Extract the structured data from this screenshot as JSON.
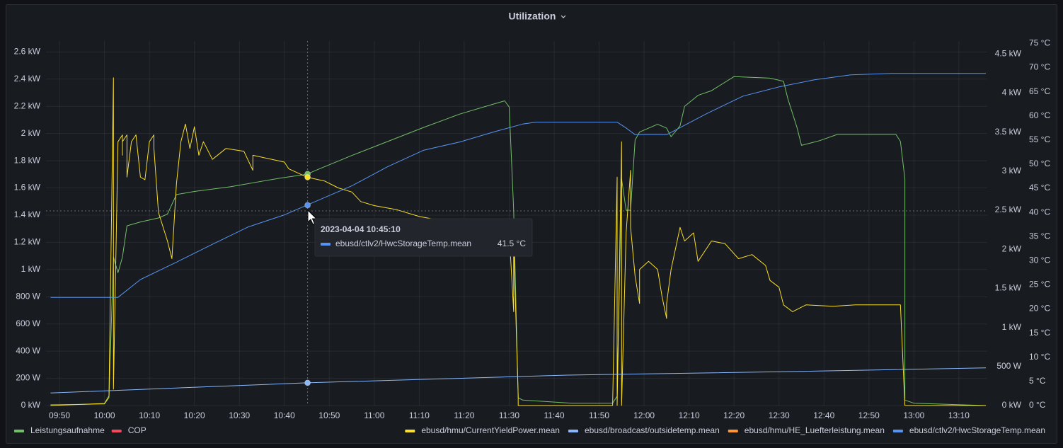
{
  "chart_data": {
    "type": "line",
    "title": "Utilization",
    "xlim": [
      "09:47",
      "13:16"
    ],
    "xticks": [
      "09:50",
      "10:00",
      "10:10",
      "10:20",
      "10:30",
      "10:40",
      "10:50",
      "11:00",
      "11:10",
      "11:20",
      "11:30",
      "11:40",
      "11:50",
      "12:00",
      "12:10",
      "12:20",
      "12:30",
      "12:40",
      "12:50",
      "13:00",
      "13:10"
    ],
    "ylim": [
      0,
      2680
    ],
    "yticks": [
      {
        "value": 0,
        "label": "0 kW"
      },
      {
        "value": 200,
        "label": "200 W"
      },
      {
        "value": 400,
        "label": "400 W"
      },
      {
        "value": 600,
        "label": "600 W"
      },
      {
        "value": 800,
        "label": "800 W"
      },
      {
        "value": 1000,
        "label": "1 kW"
      },
      {
        "value": 1200,
        "label": "1.2 kW"
      },
      {
        "value": 1400,
        "label": "1.4 kW"
      },
      {
        "value": 1600,
        "label": "1.6 kW"
      },
      {
        "value": 1800,
        "label": "1.8 kW"
      },
      {
        "value": 2000,
        "label": "2 kW"
      },
      {
        "value": 2200,
        "label": "2.2 kW"
      },
      {
        "value": 2400,
        "label": "2.4 kW"
      },
      {
        "value": 2600,
        "label": "2.6 kW"
      }
    ],
    "y2lim": [
      0,
      4665
    ],
    "y2ticks": [
      {
        "value": 0,
        "label": "0 kW"
      },
      {
        "value": 500,
        "label": "500 W"
      },
      {
        "value": 1000,
        "label": "1 kW"
      },
      {
        "value": 1500,
        "label": "1.5 kW"
      },
      {
        "value": 2000,
        "label": "2 kW"
      },
      {
        "value": 2500,
        "label": "2.5 kW"
      },
      {
        "value": 3000,
        "label": "3 kW"
      },
      {
        "value": 3500,
        "label": "3.5 kW"
      },
      {
        "value": 4000,
        "label": "4 kW"
      },
      {
        "value": 4500,
        "label": "4.5 kW"
      }
    ],
    "y3lim": [
      0,
      75.5
    ],
    "y3ticks": [
      {
        "value": 0,
        "label": "0 °C"
      },
      {
        "value": 5,
        "label": "5 °C"
      },
      {
        "value": 10,
        "label": "10 °C"
      },
      {
        "value": 15,
        "label": "15 °C"
      },
      {
        "value": 20,
        "label": "20 °C"
      },
      {
        "value": 25,
        "label": "25 °C"
      },
      {
        "value": 30,
        "label": "30 °C"
      },
      {
        "value": 35,
        "label": "35 °C"
      },
      {
        "value": 40,
        "label": "40 °C"
      },
      {
        "value": 45,
        "label": "45 °C"
      },
      {
        "value": 50,
        "label": "50 °C"
      },
      {
        "value": 55,
        "label": "55 °C"
      },
      {
        "value": 60,
        "label": "60 °C"
      },
      {
        "value": 65,
        "label": "65 °C"
      },
      {
        "value": 70,
        "label": "70 °C"
      },
      {
        "value": 75,
        "label": "75 °C"
      }
    ],
    "grid": true,
    "series": [
      {
        "name": "Leistungsaufnahme",
        "color": "#73bf69",
        "axis": "y2",
        "x": [
          "09:48",
          "10:00",
          "10:01",
          "10:02",
          "10:03",
          "10:04",
          "10:05",
          "10:08",
          "10:12",
          "10:14",
          "10:16",
          "10:20",
          "10:28",
          "10:39",
          "10:45",
          "10:47",
          "10:55",
          "11:03",
          "11:11",
          "11:19",
          "11:26",
          "11:29",
          "11:30",
          "11:31",
          "11:32",
          "11:33",
          "11:44",
          "11:53",
          "11:54",
          "11:55",
          "11:56",
          "11:57",
          "11:58",
          "11:59",
          "12:03",
          "12:05",
          "12:06",
          "12:08",
          "12:09",
          "12:12",
          "12:15",
          "12:20",
          "12:28",
          "12:31",
          "12:32",
          "12:34",
          "12:35",
          "12:39",
          "12:43",
          "12:56",
          "12:57",
          "12:58",
          "12:58",
          "13:00",
          "13:16"
        ],
        "values": [
          10,
          20,
          100,
          1900,
          1700,
          1900,
          2300,
          2350,
          2400,
          2450,
          2700,
          2740,
          2800,
          2910,
          2960,
          3010,
          3200,
          3380,
          3560,
          3730,
          3850,
          3900,
          3820,
          2500,
          100,
          70,
          30,
          30,
          120,
          2900,
          2500,
          2500,
          3400,
          3500,
          3600,
          3550,
          3440,
          3580,
          3830,
          3970,
          4030,
          4210,
          4190,
          4150,
          3920,
          3560,
          3330,
          3390,
          3470,
          3470,
          3380,
          2900,
          70,
          30,
          0
        ]
      },
      {
        "name": "COP",
        "color": "#f2495c",
        "axis": "y",
        "x": [],
        "values": []
      },
      {
        "name": "ebusd/hmu/CurrentYieldPower.mean",
        "color": "#fade2a",
        "axis": "y",
        "x": [
          "09:48",
          "10:00",
          "10:01",
          "10:02",
          "10:02",
          "10:02",
          "10:03",
          "10:04",
          "10:04",
          "10:04",
          "10:05",
          "10:05",
          "10:06",
          "10:07",
          "10:08",
          "10:09",
          "10:10",
          "10:11",
          "10:11",
          "10:12",
          "10:14",
          "10:15",
          "10:16",
          "10:17",
          "10:18",
          "10:19",
          "10:20",
          "10:21",
          "10:22",
          "10:24",
          "10:27",
          "10:31",
          "10:33",
          "10:33",
          "10:40",
          "10:41",
          "10:45",
          "10:49",
          "10:52",
          "10:55",
          "10:57",
          "11:00",
          "11:05",
          "11:10",
          "11:30",
          "11:31",
          "11:31",
          "11:32",
          "11:32",
          "11:53",
          "11:54",
          "11:54",
          "11:55",
          "11:55",
          "11:56",
          "11:57",
          "11:57",
          "11:58",
          "11:59",
          "11:59",
          "12:01",
          "12:03",
          "12:04",
          "12:05",
          "12:05",
          "12:06",
          "12:08",
          "12:09",
          "12:11",
          "12:12",
          "12:14",
          "12:15",
          "12:18",
          "12:21",
          "12:24",
          "12:27",
          "12:28",
          "12:30",
          "12:31",
          "12:33",
          "12:36",
          "12:42",
          "12:47",
          "12:54",
          "12:57",
          "12:58",
          "13:16"
        ],
        "values": [
          0,
          15,
          70,
          2410,
          900,
          120,
          1940,
          1990,
          1840,
          1940,
          1990,
          1680,
          1940,
          1990,
          1680,
          1660,
          1940,
          1990,
          1890,
          1420,
          1210,
          1080,
          1630,
          1940,
          2070,
          1890,
          2050,
          1840,
          1940,
          1810,
          1890,
          1870,
          1730,
          1840,
          1790,
          1740,
          1680,
          1650,
          1600,
          1570,
          1500,
          1470,
          1440,
          1390,
          1270,
          690,
          1210,
          70,
          0,
          0,
          1680,
          0,
          1940,
          0,
          1270,
          1730,
          1310,
          950,
          750,
          1000,
          1060,
          1000,
          800,
          640,
          750,
          1000,
          1310,
          1210,
          1270,
          1060,
          1160,
          1210,
          1190,
          1080,
          1110,
          1030,
          920,
          870,
          740,
          690,
          740,
          730,
          740,
          740,
          740,
          0,
          0
        ]
      },
      {
        "name": "ebusd/broadcast/outsidetemp.mean",
        "color": "#8ab8ff",
        "axis": "y3",
        "x": [
          "09:48",
          "10:45",
          "11:43",
          "12:30",
          "13:16"
        ],
        "values": [
          2.6,
          4.7,
          6.3,
          7.0,
          7.8
        ]
      },
      {
        "name": "ebusd/hmu/HE_Luefterleistung.mean",
        "color": "#ff9830",
        "axis": "y",
        "hidden": true,
        "x": [],
        "values": []
      },
      {
        "name": "ebusd/ctlv2/HwcStorageTemp.mean",
        "color": "#5794f2",
        "axis": "y3",
        "x": [
          "09:48",
          "10:03",
          "10:08",
          "10:16",
          "10:24",
          "10:32",
          "10:40",
          "10:45",
          "10:55",
          "11:03",
          "11:11",
          "11:19",
          "11:27",
          "11:33",
          "11:36",
          "11:54",
          "11:56",
          "11:58",
          "12:05",
          "12:14",
          "12:22",
          "12:30",
          "12:38",
          "12:46",
          "12:55",
          "13:16"
        ],
        "values": [
          22.4,
          22.4,
          26.1,
          29.7,
          33.4,
          37.0,
          39.5,
          41.5,
          45.5,
          49.5,
          52.9,
          54.6,
          56.8,
          58.3,
          58.7,
          58.7,
          57.5,
          56.1,
          56.1,
          60.5,
          64.1,
          66.0,
          67.5,
          68.5,
          68.8,
          68.8
        ]
      }
    ],
    "tooltip": {
      "time": "2023-04-04 10:45:10",
      "series": "ebusd/ctlv2/HwcStorageTemp.mean",
      "value": {
        "value": 41.5,
        "label": "41.5 °C"
      }
    }
  }
}
